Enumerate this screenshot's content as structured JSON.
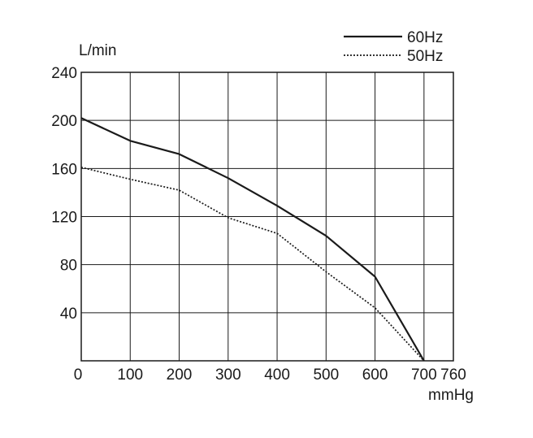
{
  "chart_data": {
    "type": "line",
    "title": "",
    "xlabel": "mmHg",
    "ylabel": "L/min",
    "xlim": [
      0,
      760
    ],
    "ylim": [
      0,
      240
    ],
    "x_ticks": [
      0,
      100,
      200,
      300,
      400,
      500,
      600,
      700,
      760
    ],
    "x_tick_labels": [
      "0",
      "100",
      "200",
      "300",
      "400",
      "500",
      "600",
      "700",
      "760"
    ],
    "y_ticks": [
      40,
      80,
      120,
      160,
      200,
      240
    ],
    "y_tick_labels": [
      "40",
      "80",
      "120",
      "160",
      "200",
      "240"
    ],
    "grid": true,
    "legend_position": "top-right",
    "series": [
      {
        "name": "60Hz",
        "style": "solid",
        "x": [
          0,
          100,
          200,
          300,
          400,
          500,
          600,
          700
        ],
        "values": [
          202,
          183,
          172,
          152,
          129,
          104,
          70,
          0
        ]
      },
      {
        "name": "50Hz",
        "style": "dotted",
        "x": [
          0,
          100,
          200,
          300,
          400,
          500,
          600,
          700
        ],
        "values": [
          161,
          151,
          142,
          119,
          106,
          74,
          44,
          0
        ]
      }
    ],
    "colors": {
      "line": "#1a1a1a",
      "grid": "#1a1a1a"
    }
  }
}
